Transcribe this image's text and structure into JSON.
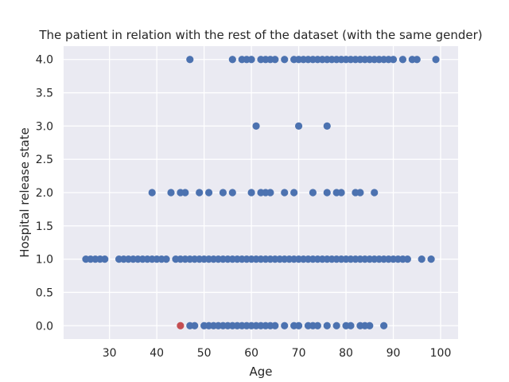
{
  "chart_data": {
    "type": "scatter",
    "title": "The patient in relation with the rest of the dataset (with the same gender)",
    "xlabel": "Age",
    "ylabel": "Hospital release state",
    "xlim": [
      20.3,
      103.7
    ],
    "ylim": [
      -0.2,
      4.2
    ],
    "xticks": [
      30,
      40,
      50,
      60,
      70,
      80,
      90,
      100
    ],
    "yticks": [
      0.0,
      0.5,
      1.0,
      1.5,
      2.0,
      2.5,
      3.0,
      3.5,
      4.0
    ],
    "xtick_labels": [
      "30",
      "40",
      "50",
      "60",
      "70",
      "80",
      "90",
      "100"
    ],
    "ytick_labels": [
      "0.0",
      "0.5",
      "1.0",
      "1.5",
      "2.0",
      "2.5",
      "3.0",
      "3.5",
      "4.0"
    ],
    "grid": true,
    "background_color": "#eaeaf2",
    "grid_color": "#ffffff",
    "series": [
      {
        "color": "#4c72b0",
        "points": [
          [
            47,
            4
          ],
          [
            56,
            4
          ],
          [
            58,
            4
          ],
          [
            59,
            4
          ],
          [
            60,
            4
          ],
          [
            62,
            4
          ],
          [
            63,
            4
          ],
          [
            64,
            4
          ],
          [
            65,
            4
          ],
          [
            67,
            4
          ],
          [
            69,
            4
          ],
          [
            70,
            4
          ],
          [
            71,
            4
          ],
          [
            72,
            4
          ],
          [
            73,
            4
          ],
          [
            74,
            4
          ],
          [
            75,
            4
          ],
          [
            76,
            4
          ],
          [
            77,
            4
          ],
          [
            78,
            4
          ],
          [
            79,
            4
          ],
          [
            80,
            4
          ],
          [
            81,
            4
          ],
          [
            82,
            4
          ],
          [
            83,
            4
          ],
          [
            84,
            4
          ],
          [
            85,
            4
          ],
          [
            86,
            4
          ],
          [
            87,
            4
          ],
          [
            88,
            4
          ],
          [
            89,
            4
          ],
          [
            90,
            4
          ],
          [
            92,
            4
          ],
          [
            94,
            4
          ],
          [
            95,
            4
          ],
          [
            99,
            4
          ],
          [
            61,
            3
          ],
          [
            70,
            3
          ],
          [
            76,
            3
          ],
          [
            39,
            2
          ],
          [
            43,
            2
          ],
          [
            45,
            2
          ],
          [
            46,
            2
          ],
          [
            49,
            2
          ],
          [
            51,
            2
          ],
          [
            54,
            2
          ],
          [
            56,
            2
          ],
          [
            60,
            2
          ],
          [
            62,
            2
          ],
          [
            63,
            2
          ],
          [
            64,
            2
          ],
          [
            67,
            2
          ],
          [
            69,
            2
          ],
          [
            73,
            2
          ],
          [
            76,
            2
          ],
          [
            78,
            2
          ],
          [
            79,
            2
          ],
          [
            82,
            2
          ],
          [
            83,
            2
          ],
          [
            86,
            2
          ],
          [
            25,
            1
          ],
          [
            26,
            1
          ],
          [
            27,
            1
          ],
          [
            28,
            1
          ],
          [
            29,
            1
          ],
          [
            32,
            1
          ],
          [
            33,
            1
          ],
          [
            34,
            1
          ],
          [
            35,
            1
          ],
          [
            36,
            1
          ],
          [
            37,
            1
          ],
          [
            38,
            1
          ],
          [
            39,
            1
          ],
          [
            40,
            1
          ],
          [
            41,
            1
          ],
          [
            42,
            1
          ],
          [
            44,
            1
          ],
          [
            45,
            1
          ],
          [
            46,
            1
          ],
          [
            47,
            1
          ],
          [
            48,
            1
          ],
          [
            49,
            1
          ],
          [
            50,
            1
          ],
          [
            51,
            1
          ],
          [
            52,
            1
          ],
          [
            53,
            1
          ],
          [
            54,
            1
          ],
          [
            55,
            1
          ],
          [
            56,
            1
          ],
          [
            57,
            1
          ],
          [
            58,
            1
          ],
          [
            59,
            1
          ],
          [
            60,
            1
          ],
          [
            61,
            1
          ],
          [
            62,
            1
          ],
          [
            63,
            1
          ],
          [
            64,
            1
          ],
          [
            65,
            1
          ],
          [
            66,
            1
          ],
          [
            67,
            1
          ],
          [
            68,
            1
          ],
          [
            69,
            1
          ],
          [
            70,
            1
          ],
          [
            71,
            1
          ],
          [
            72,
            1
          ],
          [
            73,
            1
          ],
          [
            74,
            1
          ],
          [
            75,
            1
          ],
          [
            76,
            1
          ],
          [
            77,
            1
          ],
          [
            78,
            1
          ],
          [
            79,
            1
          ],
          [
            80,
            1
          ],
          [
            81,
            1
          ],
          [
            82,
            1
          ],
          [
            83,
            1
          ],
          [
            84,
            1
          ],
          [
            85,
            1
          ],
          [
            86,
            1
          ],
          [
            87,
            1
          ],
          [
            88,
            1
          ],
          [
            89,
            1
          ],
          [
            90,
            1
          ],
          [
            91,
            1
          ],
          [
            92,
            1
          ],
          [
            93,
            1
          ],
          [
            96,
            1
          ],
          [
            98,
            1
          ],
          [
            47,
            0
          ],
          [
            48,
            0
          ],
          [
            50,
            0
          ],
          [
            51,
            0
          ],
          [
            52,
            0
          ],
          [
            53,
            0
          ],
          [
            54,
            0
          ],
          [
            55,
            0
          ],
          [
            56,
            0
          ],
          [
            57,
            0
          ],
          [
            58,
            0
          ],
          [
            59,
            0
          ],
          [
            60,
            0
          ],
          [
            61,
            0
          ],
          [
            62,
            0
          ],
          [
            63,
            0
          ],
          [
            64,
            0
          ],
          [
            65,
            0
          ],
          [
            67,
            0
          ],
          [
            69,
            0
          ],
          [
            70,
            0
          ],
          [
            72,
            0
          ],
          [
            73,
            0
          ],
          [
            74,
            0
          ],
          [
            76,
            0
          ],
          [
            78,
            0
          ],
          [
            80,
            0
          ],
          [
            81,
            0
          ],
          [
            83,
            0
          ],
          [
            84,
            0
          ],
          [
            85,
            0
          ],
          [
            88,
            0
          ]
        ]
      },
      {
        "color": "#c44e52",
        "points": [
          [
            45,
            0
          ]
        ]
      }
    ]
  }
}
